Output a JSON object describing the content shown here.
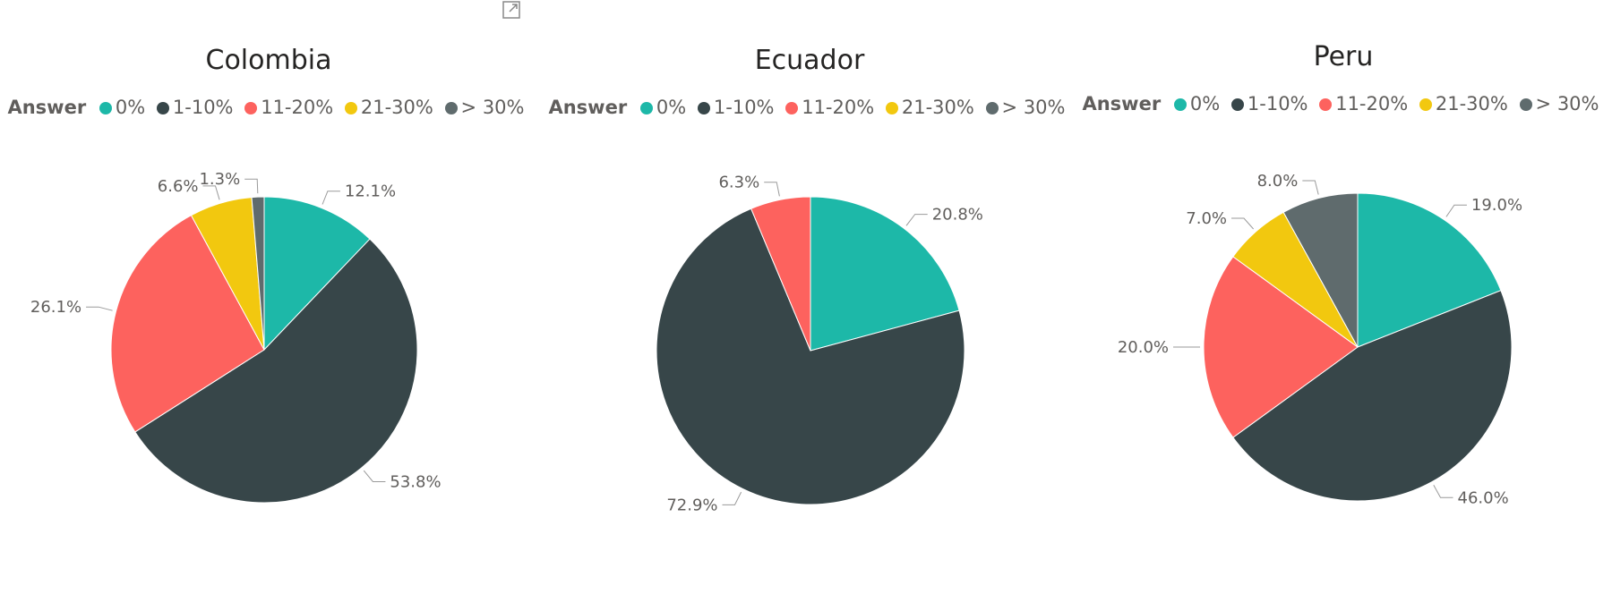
{
  "legend": {
    "title": "Answer",
    "items": [
      {
        "label": "0%",
        "color": "#1DB8A8"
      },
      {
        "label": "1-10%",
        "color": "#374649"
      },
      {
        "label": "11-20%",
        "color": "#FD625E"
      },
      {
        "label": "21-30%",
        "color": "#F2C80F"
      },
      {
        "label": "> 30%",
        "color": "#5F6B6D"
      }
    ]
  },
  "icons": {
    "expand": "expand-icon"
  },
  "chart_data": [
    {
      "type": "pie",
      "title": "Colombia",
      "categories": [
        "0%",
        "1-10%",
        "11-20%",
        "21-30%",
        "> 30%"
      ],
      "values": [
        12.1,
        53.8,
        26.1,
        6.6,
        1.3
      ],
      "value_labels": [
        "12.1%",
        "53.8%",
        "26.1%",
        "6.6%",
        "1.3%"
      ],
      "legend_title": "Answer",
      "legend_placement": "top"
    },
    {
      "type": "pie",
      "title": "Ecuador",
      "categories": [
        "0%",
        "1-10%",
        "11-20%",
        "21-30%",
        "> 30%"
      ],
      "values": [
        20.8,
        72.9,
        6.3,
        0,
        0
      ],
      "value_labels": [
        "20.8%",
        "72.9%",
        "6.3%",
        "",
        ""
      ],
      "legend_title": "Answer",
      "legend_placement": "top"
    },
    {
      "type": "pie",
      "title": "Peru",
      "categories": [
        "0%",
        "1-10%",
        "11-20%",
        "21-30%",
        "> 30%"
      ],
      "values": [
        19.0,
        46.0,
        20.0,
        7.0,
        8.0
      ],
      "value_labels": [
        "19.0%",
        "46.0%",
        "20.0%",
        "7.0%",
        "8.0%"
      ],
      "legend_title": "Answer",
      "legend_placement": "top"
    }
  ]
}
